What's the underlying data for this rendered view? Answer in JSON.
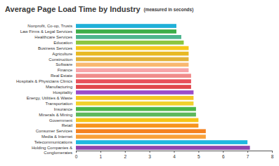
{
  "chart_data": {
    "type": "bar",
    "orientation": "horizontal",
    "title": "Average Page Load Time by Industry",
    "subtitle": "(measured in seconds)",
    "categories": [
      "Nonprofit, Co-op, Trusts",
      "Law Firms & Legal Services",
      "Healthcare Services",
      "Education",
      "Business Services",
      "Agriculture",
      "Construction",
      "Software",
      "Finance",
      "Real Estate",
      "Hospitals & Physicians Clinics",
      "Manufacturing",
      "Hospitality",
      "Energy, Utilities & Waste",
      "Transportation",
      "Insurance",
      "Minerals & Mining",
      "Government",
      "Retail",
      "Consumer Services",
      "Media & Internet",
      "Telecommunications",
      "Holding Companies & Conglomerates"
    ],
    "values": [
      4.1,
      4.1,
      4.3,
      4.4,
      4.6,
      4.6,
      4.6,
      4.6,
      4.6,
      4.7,
      4.7,
      4.7,
      4.8,
      4.8,
      4.8,
      4.9,
      4.9,
      5.0,
      5.0,
      5.3,
      5.3,
      7.0,
      7.1
    ],
    "colors": [
      "#1fb0d8",
      "#3dae49",
      "#4db58e",
      "#8cc63f",
      "#f6c81c",
      "#e8b923",
      "#e2b33a",
      "#f9b870",
      "#f7a3a8",
      "#f08b8b",
      "#e8505b",
      "#e0474c",
      "#9b4dca",
      "#f3c623",
      "#f2d12c",
      "#4cb648",
      "#5cb85c",
      "#f5c518",
      "#f7941d",
      "#f58220",
      "#f9a23c",
      "#1fb7e0",
      "#8e44ad"
    ],
    "xlim": [
      0,
      8
    ],
    "xticks": [
      0,
      1,
      2,
      3,
      4,
      5,
      6,
      7,
      8
    ],
    "grid": false
  }
}
